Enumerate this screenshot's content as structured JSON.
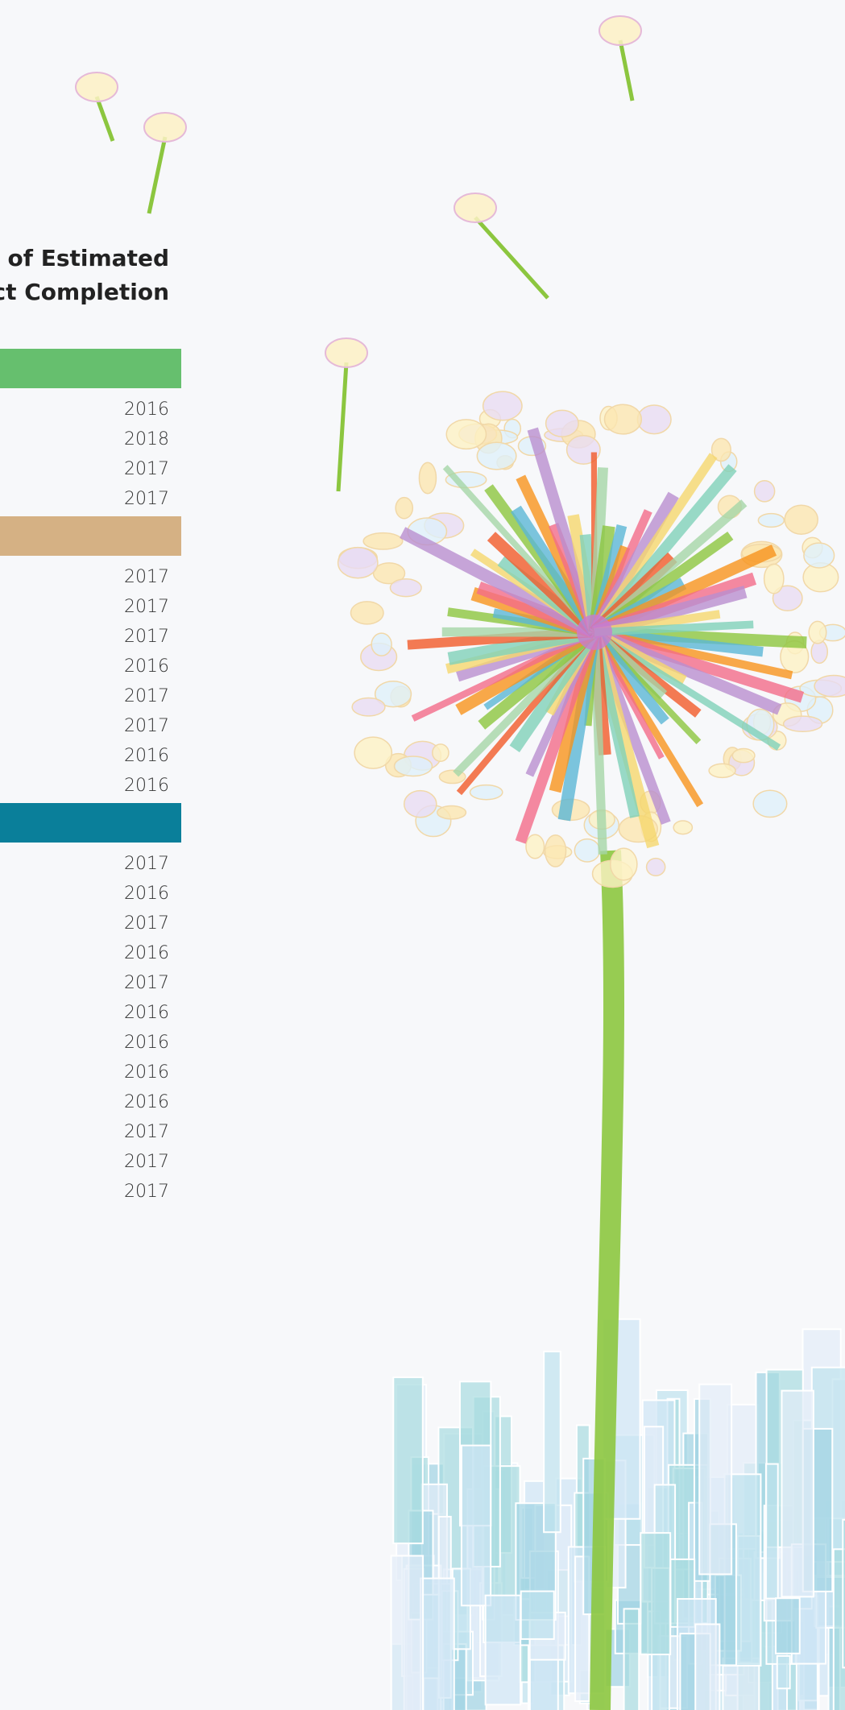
{
  "header": {
    "title_lines": [
      "ar of Estimated",
      "ect Completion"
    ]
  },
  "groups": [
    {
      "color": "#66bf6e",
      "years": [
        "2016",
        "2018",
        "2017",
        "2017"
      ]
    },
    {
      "color": "#d5b184",
      "years": [
        "2017",
        "2017",
        "2017",
        "2016",
        "2017",
        "2017",
        "2016",
        "2016"
      ]
    },
    {
      "color": "#0a7f9a",
      "years": [
        "2017",
        "2016",
        "2017",
        "2016",
        "2017",
        "2016",
        "2016",
        "2016",
        "2016",
        "2017",
        "2017",
        "2017"
      ]
    }
  ]
}
